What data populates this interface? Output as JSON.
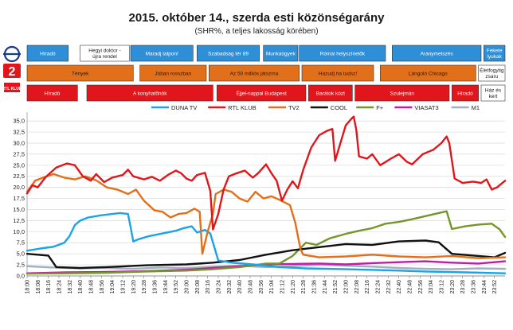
{
  "title": "2015. október 14., szerda esti közönségarány",
  "subtitle": "(SHR%, a teljes lakosság körében)",
  "schedule": [
    {
      "channel": "m1",
      "color": "#2e8fd6",
      "textColor": "#ffffff",
      "programs": [
        {
          "s": "18:00",
          "e": "18:31",
          "t": "Híradó"
        },
        {
          "s": "18:40",
          "e": "19:17",
          "t": "Hegyi doktor - újra rendel",
          "bg": "#ffffff",
          "tc": "#1a1a1a"
        },
        {
          "s": "19:18",
          "e": "20:05",
          "t": "Maradj talpon!"
        },
        {
          "s": "20:08",
          "e": "20:55",
          "t": "Szabadság tér 89"
        },
        {
          "s": "20:58",
          "e": "21:24",
          "t": "Munkaügyek"
        },
        {
          "s": "21:25",
          "e": "22:30",
          "t": "Római helyszínelők"
        },
        {
          "s": "22:35",
          "e": "23:42",
          "t": "Aranymetszés"
        },
        {
          "s": "23:44",
          "e": "24:00",
          "t": "Fekete lyukak"
        }
      ]
    },
    {
      "channel": "tv2",
      "color": "#e2701a",
      "textColor": "#1a1a1a",
      "programs": [
        {
          "s": "18:00",
          "e": "19:20",
          "t": "Tények"
        },
        {
          "s": "19:25",
          "e": "20:15",
          "t": "Jóban rosszban"
        },
        {
          "s": "20:17",
          "e": "21:25",
          "t": "Az 50 milliós játszma"
        },
        {
          "s": "21:27",
          "e": "22:21",
          "t": "Hazudj ha tudsz!"
        },
        {
          "s": "22:26",
          "e": "23:38",
          "t": "Lángoló Chicago"
        },
        {
          "s": "23:40",
          "e": "24:00",
          "t": "Életfogytig zsaru",
          "bg": "#ffffff",
          "tc": "#1a1a1a"
        }
      ]
    },
    {
      "channel": "rtl",
      "color": "#e0161c",
      "textColor": "#ffffff",
      "programs": [
        {
          "s": "18:00",
          "e": "18:38",
          "t": "Híradó"
        },
        {
          "s": "18:45",
          "e": "20:20",
          "t": "A konyhafőnök"
        },
        {
          "s": "20:23",
          "e": "21:30",
          "t": "Éjjel-nappal Budapest"
        },
        {
          "s": "21:32",
          "e": "22:05",
          "t": "Barátok közt"
        },
        {
          "s": "22:07",
          "e": "23:18",
          "t": "Szulejmán"
        },
        {
          "s": "23:20",
          "e": "23:40",
          "t": "Híradó"
        },
        {
          "s": "23:42",
          "e": "24:00",
          "t": "Ház és kert",
          "bg": "#ffffff",
          "tc": "#1a1a1a"
        }
      ]
    }
  ],
  "logos": {
    "tv2": "2",
    "rtl": "RTL KLUB"
  },
  "chart_data": {
    "type": "line",
    "title": "2015. október 14., szerda esti közönségarány",
    "subtitle": "(SHR%, a teljes lakosság körében)",
    "ylim": [
      0,
      37
    ],
    "yticks": [
      "0,0",
      "2,5",
      "5,0",
      "7,5",
      "10,0",
      "12,5",
      "15,0",
      "17,5",
      "20,0",
      "22,5",
      "25,0",
      "27,5",
      "30,0",
      "32,5",
      "35,0"
    ],
    "xrange": [
      "18:00",
      "24:00"
    ],
    "xticks": [
      "18:00",
      "18:08",
      "18:16",
      "18:24",
      "18:32",
      "18:40",
      "18:48",
      "18:56",
      "19:04",
      "19:12",
      "19:20",
      "19:28",
      "19:36",
      "19:44",
      "19:52",
      "20:00",
      "20:08",
      "20:16",
      "20:24",
      "20:32",
      "20:40",
      "20:48",
      "20:56",
      "21:04",
      "21:12",
      "21:20",
      "21:28",
      "21:36",
      "21:44",
      "21:52",
      "22:00",
      "22:08",
      "22:16",
      "22:24",
      "22:32",
      "22:40",
      "22:48",
      "22:56",
      "23:04",
      "23:12",
      "23:20",
      "23:28",
      "23:36",
      "23:44",
      "23:52"
    ],
    "grid": true,
    "legend_position": "top",
    "series": [
      {
        "name": "DUNA TV",
        "color": "#1aa3e8",
        "points": [
          [
            "18:00",
            5.7
          ],
          [
            "18:10",
            6.2
          ],
          [
            "18:20",
            6.6
          ],
          [
            "18:28",
            7.5
          ],
          [
            "18:32",
            9.0
          ],
          [
            "18:36",
            11.5
          ],
          [
            "18:40",
            12.5
          ],
          [
            "18:46",
            13.2
          ],
          [
            "18:56",
            13.7
          ],
          [
            "19:10",
            14.2
          ],
          [
            "19:16",
            14.0
          ],
          [
            "19:18",
            11.0
          ],
          [
            "19:20",
            7.8
          ],
          [
            "19:24",
            8.3
          ],
          [
            "19:32",
            9.0
          ],
          [
            "19:42",
            9.6
          ],
          [
            "19:52",
            10.2
          ],
          [
            "19:58",
            10.8
          ],
          [
            "20:04",
            11.2
          ],
          [
            "20:08",
            9.8
          ],
          [
            "20:14",
            10.4
          ],
          [
            "20:18",
            9.6
          ],
          [
            "20:24",
            3.5
          ],
          [
            "20:34",
            3.0
          ],
          [
            "20:50",
            2.6
          ],
          [
            "21:10",
            2.0
          ],
          [
            "21:30",
            1.7
          ],
          [
            "22:00",
            1.5
          ],
          [
            "22:30",
            1.3
          ],
          [
            "23:00",
            1.0
          ],
          [
            "23:30",
            0.8
          ],
          [
            "24:00",
            0.6
          ]
        ]
      },
      {
        "name": "RTL KLUB",
        "color": "#e0161c",
        "points": [
          [
            "18:00",
            18.6
          ],
          [
            "18:04",
            20.5
          ],
          [
            "18:08",
            20.0
          ],
          [
            "18:14",
            22.3
          ],
          [
            "18:22",
            24.5
          ],
          [
            "18:30",
            25.4
          ],
          [
            "18:36",
            25.0
          ],
          [
            "18:42",
            22.5
          ],
          [
            "18:48",
            21.5
          ],
          [
            "18:52",
            23.0
          ],
          [
            "18:58",
            21.2
          ],
          [
            "19:04",
            22.2
          ],
          [
            "19:12",
            22.8
          ],
          [
            "19:16",
            24.0
          ],
          [
            "19:20",
            22.5
          ],
          [
            "19:28",
            21.8
          ],
          [
            "19:34",
            22.4
          ],
          [
            "19:40",
            21.5
          ],
          [
            "19:46",
            22.8
          ],
          [
            "19:52",
            23.8
          ],
          [
            "19:56",
            23.2
          ],
          [
            "20:00",
            22.0
          ],
          [
            "20:04",
            21.5
          ],
          [
            "20:08",
            22.8
          ],
          [
            "20:14",
            23.3
          ],
          [
            "20:18",
            19.2
          ],
          [
            "20:20",
            10.5
          ],
          [
            "20:24",
            14.0
          ],
          [
            "20:28",
            19.5
          ],
          [
            "20:32",
            22.5
          ],
          [
            "20:38",
            23.2
          ],
          [
            "20:44",
            23.8
          ],
          [
            "20:50",
            22.2
          ],
          [
            "20:54",
            23.2
          ],
          [
            "21:00",
            25.2
          ],
          [
            "21:04",
            23.2
          ],
          [
            "21:08",
            21.5
          ],
          [
            "21:12",
            17.0
          ],
          [
            "21:16",
            19.5
          ],
          [
            "21:20",
            21.4
          ],
          [
            "21:24",
            19.8
          ],
          [
            "21:28",
            24.0
          ],
          [
            "21:34",
            29.0
          ],
          [
            "21:40",
            31.8
          ],
          [
            "21:46",
            32.8
          ],
          [
            "21:50",
            33.2
          ],
          [
            "21:52",
            26.0
          ],
          [
            "21:56",
            30.0
          ],
          [
            "22:00",
            34.0
          ],
          [
            "22:04",
            35.4
          ],
          [
            "22:06",
            36.0
          ],
          [
            "22:08",
            33.0
          ],
          [
            "22:10",
            27.0
          ],
          [
            "22:16",
            26.5
          ],
          [
            "22:20",
            27.5
          ],
          [
            "22:26",
            25.0
          ],
          [
            "22:34",
            26.5
          ],
          [
            "22:40",
            27.5
          ],
          [
            "22:46",
            25.8
          ],
          [
            "22:50",
            25.2
          ],
          [
            "22:58",
            27.5
          ],
          [
            "23:06",
            28.5
          ],
          [
            "23:12",
            30.0
          ],
          [
            "23:16",
            31.5
          ],
          [
            "23:18",
            30.0
          ],
          [
            "23:22",
            22.0
          ],
          [
            "23:28",
            21.0
          ],
          [
            "23:36",
            21.3
          ],
          [
            "23:42",
            21.0
          ],
          [
            "23:46",
            21.8
          ],
          [
            "23:50",
            19.5
          ],
          [
            "23:54",
            20.0
          ],
          [
            "24:00",
            21.5
          ]
        ]
      },
      {
        "name": "TV2",
        "color": "#e2701a",
        "points": [
          [
            "18:00",
            19.0
          ],
          [
            "18:06",
            21.5
          ],
          [
            "18:12",
            22.2
          ],
          [
            "18:20",
            23.0
          ],
          [
            "18:28",
            22.2
          ],
          [
            "18:36",
            21.8
          ],
          [
            "18:44",
            22.5
          ],
          [
            "18:52",
            21.6
          ],
          [
            "19:00",
            20.0
          ],
          [
            "19:08",
            19.5
          ],
          [
            "19:16",
            18.5
          ],
          [
            "19:22",
            19.5
          ],
          [
            "19:28",
            17.0
          ],
          [
            "19:36",
            14.8
          ],
          [
            "19:42",
            14.5
          ],
          [
            "19:48",
            13.2
          ],
          [
            "19:54",
            14.0
          ],
          [
            "20:00",
            14.2
          ],
          [
            "20:06",
            15.2
          ],
          [
            "20:10",
            14.5
          ],
          [
            "20:12",
            5.0
          ],
          [
            "20:16",
            10.0
          ],
          [
            "20:20",
            14.0
          ],
          [
            "20:22",
            18.5
          ],
          [
            "20:28",
            19.5
          ],
          [
            "20:34",
            19.0
          ],
          [
            "20:40",
            17.5
          ],
          [
            "20:46",
            16.8
          ],
          [
            "20:52",
            19.0
          ],
          [
            "20:58",
            17.5
          ],
          [
            "21:04",
            18.0
          ],
          [
            "21:10",
            17.2
          ],
          [
            "21:18",
            16.0
          ],
          [
            "21:22",
            12.0
          ],
          [
            "21:26",
            6.0
          ],
          [
            "21:28",
            4.8
          ],
          [
            "21:40",
            4.2
          ],
          [
            "22:00",
            4.4
          ],
          [
            "22:20",
            4.8
          ],
          [
            "22:40",
            4.4
          ],
          [
            "23:00",
            4.2
          ],
          [
            "23:20",
            4.5
          ],
          [
            "23:40",
            4.0
          ],
          [
            "24:00",
            4.2
          ]
        ]
      },
      {
        "name": "COOL",
        "color": "#111111",
        "points": [
          [
            "18:00",
            5.0
          ],
          [
            "18:08",
            4.8
          ],
          [
            "18:16",
            4.6
          ],
          [
            "18:22",
            2.0
          ],
          [
            "18:40",
            1.8
          ],
          [
            "19:00",
            2.0
          ],
          [
            "19:30",
            2.4
          ],
          [
            "20:00",
            2.6
          ],
          [
            "20:20",
            3.0
          ],
          [
            "20:40",
            3.6
          ],
          [
            "21:00",
            4.8
          ],
          [
            "21:20",
            5.8
          ],
          [
            "21:40",
            6.5
          ],
          [
            "22:00",
            7.2
          ],
          [
            "22:20",
            7.0
          ],
          [
            "22:40",
            7.8
          ],
          [
            "23:00",
            8.0
          ],
          [
            "23:10",
            7.6
          ],
          [
            "23:20",
            5.0
          ],
          [
            "23:40",
            4.5
          ],
          [
            "23:52",
            4.2
          ],
          [
            "24:00",
            5.2
          ]
        ]
      },
      {
        "name": "F+",
        "color": "#74962a",
        "points": [
          [
            "18:00",
            0.5
          ],
          [
            "18:30",
            0.6
          ],
          [
            "19:00",
            0.7
          ],
          [
            "19:30",
            1.0
          ],
          [
            "20:00",
            1.2
          ],
          [
            "20:20",
            1.5
          ],
          [
            "20:40",
            2.0
          ],
          [
            "21:00",
            2.8
          ],
          [
            "21:10",
            2.8
          ],
          [
            "21:20",
            4.5
          ],
          [
            "21:30",
            7.5
          ],
          [
            "21:38",
            7.0
          ],
          [
            "21:48",
            8.5
          ],
          [
            "22:00",
            9.5
          ],
          [
            "22:10",
            10.2
          ],
          [
            "22:20",
            10.8
          ],
          [
            "22:30",
            11.8
          ],
          [
            "22:40",
            12.2
          ],
          [
            "22:50",
            12.8
          ],
          [
            "23:00",
            13.5
          ],
          [
            "23:10",
            14.2
          ],
          [
            "23:16",
            14.6
          ],
          [
            "23:20",
            10.6
          ],
          [
            "23:30",
            11.2
          ],
          [
            "23:40",
            11.6
          ],
          [
            "23:50",
            11.8
          ],
          [
            "23:56",
            10.5
          ],
          [
            "24:00",
            8.8
          ]
        ]
      },
      {
        "name": "VIASAT3",
        "color": "#c01ca5",
        "points": [
          [
            "18:00",
            0.6
          ],
          [
            "18:30",
            0.8
          ],
          [
            "19:00",
            0.9
          ],
          [
            "19:30",
            1.1
          ],
          [
            "20:00",
            1.4
          ],
          [
            "20:20",
            1.8
          ],
          [
            "20:40",
            2.2
          ],
          [
            "21:00",
            2.6
          ],
          [
            "21:20",
            2.7
          ],
          [
            "21:40",
            2.8
          ],
          [
            "22:00",
            2.6
          ],
          [
            "22:20",
            2.9
          ],
          [
            "22:40",
            3.1
          ],
          [
            "23:00",
            3.3
          ],
          [
            "23:20",
            3.0
          ],
          [
            "23:40",
            2.8
          ],
          [
            "24:00",
            3.3
          ]
        ]
      },
      {
        "name": "M1",
        "color": "#9fb0c0",
        "points": [
          [
            "18:00",
            2.2
          ],
          [
            "18:20",
            1.9
          ],
          [
            "18:40",
            1.7
          ],
          [
            "19:00",
            1.8
          ],
          [
            "19:20",
            1.6
          ],
          [
            "19:40",
            1.9
          ],
          [
            "20:00",
            1.8
          ],
          [
            "20:20",
            2.1
          ],
          [
            "20:40",
            2.3
          ],
          [
            "21:00",
            2.0
          ],
          [
            "21:20",
            2.2
          ],
          [
            "21:40",
            2.5
          ],
          [
            "22:00",
            2.3
          ],
          [
            "22:20",
            2.1
          ],
          [
            "22:40",
            1.8
          ],
          [
            "23:00",
            1.6
          ],
          [
            "23:20",
            1.5
          ],
          [
            "23:40",
            1.7
          ],
          [
            "24:00",
            1.6
          ]
        ]
      }
    ]
  }
}
